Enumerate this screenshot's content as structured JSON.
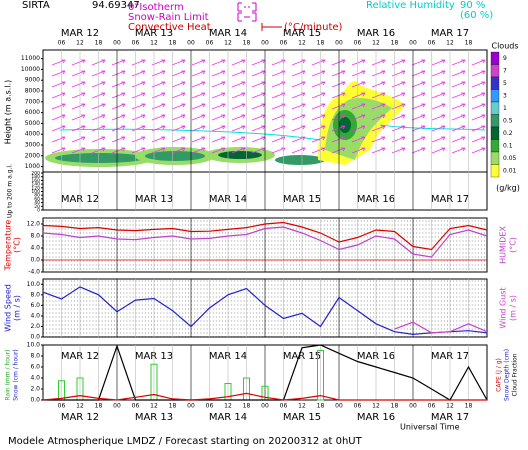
{
  "header": {
    "station": "SIRTA",
    "coord": "94.69347",
    "isotherm": "0°Isotherm",
    "snow_rain": "Snow-Rain Limit",
    "convective": "Convective Heat.",
    "convective_unit": "(°C/minute)",
    "rh": "Relative Humidity",
    "rh_high": "90 %",
    "rh_low": "(60 %)",
    "time_label": "Universal Time",
    "footer": "Modele Atmospherique LMDZ / Forecast starting on 20200312 at 0hUT"
  },
  "clouds": {
    "title": "Clouds",
    "unit": "(g/kg)",
    "levels": [
      9,
      7,
      5,
      3,
      1,
      0.5,
      0.2,
      0.1,
      0.05,
      0.01
    ],
    "colors": [
      "#9900cc",
      "#cc44cc",
      "#3333cc",
      "#3399ff",
      "#66cccc",
      "#339966",
      "#006633",
      "#33aa33",
      "#99dd66",
      "#ffff33"
    ]
  },
  "chart_data": [
    {
      "type": "height",
      "y_label": "Height (m a.s.l.)",
      "y2_label": "Up to 200 m a.g.l.",
      "xlim": [
        0,
        144
      ],
      "ylim": [
        500,
        11800
      ],
      "yticks": [
        1000,
        2000,
        3000,
        4000,
        5000,
        6000,
        7000,
        8000,
        9000,
        10000,
        11000
      ],
      "y2lim": [
        0,
        200
      ],
      "y2ticks": [
        0,
        20,
        40,
        60,
        80,
        100,
        120,
        140,
        160,
        180,
        200
      ],
      "xticks": [
        {
          "value": 6,
          "label": "06"
        },
        {
          "value": 12,
          "label": "12"
        },
        {
          "value": 18,
          "label": "18"
        },
        {
          "value": 24,
          "label": "00"
        },
        {
          "value": 30,
          "label": "06"
        },
        {
          "value": 36,
          "label": "12"
        },
        {
          "value": 42,
          "label": "18"
        },
        {
          "value": 48,
          "label": "00"
        },
        {
          "value": 54,
          "label": "06"
        },
        {
          "value": 60,
          "label": "12"
        },
        {
          "value": 66,
          "label": "18"
        },
        {
          "value": 72,
          "label": "00"
        },
        {
          "value": 78,
          "label": "06"
        },
        {
          "value": 84,
          "label": "12"
        },
        {
          "value": 90,
          "label": "18"
        },
        {
          "value": 96,
          "label": "00"
        },
        {
          "value": 102,
          "label": "06"
        },
        {
          "value": 108,
          "label": "12"
        },
        {
          "value": 114,
          "label": "18"
        },
        {
          "value": 120,
          "label": "00"
        },
        {
          "value": 126,
          "label": "06"
        },
        {
          "value": 132,
          "label": "12"
        },
        {
          "value": 138,
          "label": "18"
        }
      ],
      "day_ticks": [
        {
          "value": 12,
          "label": "MAR 12"
        },
        {
          "value": 36,
          "label": "MAR 13"
        },
        {
          "value": 60,
          "label": "MAR 14"
        },
        {
          "value": 84,
          "label": "MAR 15"
        },
        {
          "value": 108,
          "label": "MAR 16"
        },
        {
          "value": 132,
          "label": "MAR 17"
        }
      ]
    },
    {
      "type": "line",
      "y_label": "Temperature",
      "y_unit": "(°C)",
      "y2_label": "HUMIDEX",
      "y2_unit": "(°C)",
      "xlim": [
        0,
        144
      ],
      "ylim": [
        -4,
        14
      ],
      "yticks": [
        {
          "value": -4,
          "label": "-4.0"
        },
        {
          "value": 0,
          "label": "0.0"
        },
        {
          "value": 4,
          "label": "4.0"
        },
        {
          "value": 8,
          "label": "8.0"
        },
        {
          "value": 12,
          "label": "12.0"
        }
      ],
      "x": [
        0,
        6,
        12,
        18,
        24,
        30,
        36,
        42,
        48,
        54,
        60,
        66,
        72,
        78,
        84,
        90,
        96,
        102,
        108,
        114,
        120,
        126,
        132,
        138,
        144
      ],
      "series": [
        {
          "name": "Temperature",
          "color": "#dd0000",
          "values": [
            11.5,
            11.2,
            10.5,
            10.8,
            10.0,
            9.8,
            10.2,
            10.5,
            9.5,
            9.6,
            10.2,
            10.8,
            12.0,
            12.5,
            11.0,
            9.0,
            6.0,
            7.5,
            10.0,
            9.5,
            4.5,
            3.5,
            10.5,
            11.5,
            10.0
          ]
        },
        {
          "name": "HUMIDEX",
          "color": "#bb44cc",
          "values": [
            9.0,
            8.5,
            7.5,
            8.0,
            7.0,
            6.8,
            7.5,
            8.0,
            7.0,
            7.2,
            8.0,
            8.5,
            10.5,
            11.0,
            9.0,
            6.5,
            3.5,
            5.0,
            8.0,
            7.0,
            2.0,
            1.0,
            8.5,
            10.0,
            8.0
          ]
        }
      ]
    },
    {
      "type": "line",
      "y_label": "Wind Speed",
      "y_unit": "(m / s)",
      "y2_label": "Wind Gust",
      "y2_unit": "(m / s)",
      "xlim": [
        0,
        144
      ],
      "ylim": [
        0,
        11
      ],
      "yticks": [
        {
          "value": 0,
          "label": "0.0"
        },
        {
          "value": 2,
          "label": "2.0"
        },
        {
          "value": 4,
          "label": "4.0"
        },
        {
          "value": 6,
          "label": "6.0"
        },
        {
          "value": 8,
          "label": "8.0"
        },
        {
          "value": 10,
          "label": "10.0"
        }
      ],
      "x": [
        0,
        6,
        12,
        18,
        24,
        30,
        36,
        42,
        48,
        54,
        60,
        66,
        72,
        78,
        84,
        90,
        96,
        102,
        108,
        114,
        120,
        126,
        132,
        138,
        144
      ],
      "series": [
        {
          "name": "Wind Speed",
          "color": "#2222cc",
          "values": [
            8.5,
            7.2,
            9.5,
            8.0,
            4.8,
            7.0,
            7.3,
            5.0,
            2.0,
            5.5,
            8.0,
            9.2,
            6.0,
            3.5,
            4.5,
            2.0,
            7.5,
            5.0,
            2.5,
            1.0,
            0.5,
            0.8,
            1.0,
            1.2,
            0.8
          ]
        },
        {
          "name": "Wind Gust",
          "color": "#cc44cc",
          "values": [
            null,
            null,
            null,
            null,
            null,
            null,
            null,
            null,
            null,
            null,
            null,
            null,
            null,
            null,
            null,
            null,
            null,
            null,
            null,
            1.5,
            2.8,
            0.8,
            1.0,
            2.5,
            1.0
          ]
        }
      ]
    },
    {
      "type": "bar-line",
      "y_label": "Rain (mm / hour)",
      "y_label2": "Snow (cm / hour)",
      "y2_labels": [
        "CAPE (J / g)",
        "Snow Depth (cm)",
        "Cloud Fraction"
      ],
      "xlim": [
        0,
        144
      ],
      "ylim": [
        0,
        10
      ],
      "yticks": [
        {
          "value": 0,
          "label": "0.0"
        },
        {
          "value": 2,
          "label": "2.0"
        },
        {
          "value": 4,
          "label": "4.0"
        },
        {
          "value": 6,
          "label": "6.0"
        },
        {
          "value": 8,
          "label": "8.0"
        },
        {
          "value": 10,
          "label": "10.0"
        }
      ],
      "x": [
        0,
        6,
        12,
        18,
        24,
        30,
        36,
        42,
        48,
        54,
        60,
        66,
        72,
        78,
        84,
        90,
        96,
        102,
        108,
        114,
        120,
        126,
        132,
        138,
        144
      ],
      "bars": {
        "name": "Rain",
        "color": "#33cc33",
        "values": [
          0,
          3.5,
          4.0,
          0,
          0,
          0,
          6.5,
          0,
          0,
          0,
          3.0,
          4.0,
          2.5,
          0,
          0,
          9.0,
          0,
          0,
          0,
          0,
          0,
          0,
          0,
          0,
          0
        ]
      },
      "series": [
        {
          "name": "Cloud Fraction",
          "color": "#000000",
          "values": [
            0,
            0,
            0,
            0,
            9.8,
            0,
            0,
            0,
            0,
            0,
            0,
            0,
            0,
            0,
            9.5,
            10,
            8.5,
            7,
            6,
            5,
            4,
            2,
            0,
            6,
            0
          ]
        },
        {
          "name": "CAPE",
          "color": "#dd0000",
          "values": [
            0,
            0.3,
            0.8,
            0.3,
            0,
            0.5,
            1.0,
            0.2,
            0,
            0.2,
            0.6,
            1.2,
            0.5,
            0,
            0.3,
            0.8,
            0,
            0,
            0,
            0,
            0,
            0,
            0,
            0,
            0
          ]
        }
      ]
    }
  ]
}
